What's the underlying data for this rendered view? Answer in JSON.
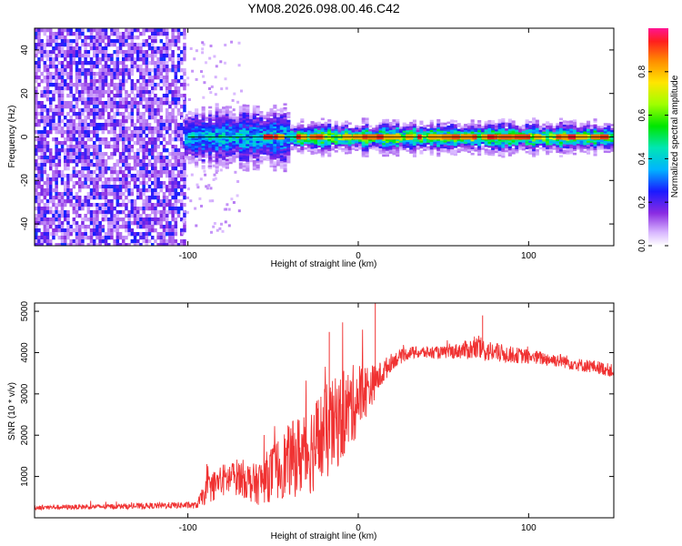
{
  "title": "YM08.2026.098.00.46.C42",
  "colors": {
    "line": "#f03232",
    "frame": "#000000",
    "background": "#ffffff"
  },
  "chart_data": [
    {
      "type": "heatmap",
      "xlabel": "Height of straight line (km)",
      "ylabel": "Frequency (Hz)",
      "xlim": [
        -190,
        150
      ],
      "ylim": [
        -50,
        50
      ],
      "xticks": [
        -100,
        0,
        100
      ],
      "yticks": [
        -40,
        -20,
        0,
        20,
        40
      ],
      "grid": false,
      "colorbar": {
        "label": "Normalized spectral amplitude",
        "range": [
          0,
          1
        ],
        "ticks": [
          0.0,
          0.2,
          0.4,
          0.6,
          0.8
        ],
        "tick_labels": [
          "0.0",
          "0.2",
          "0.4",
          "0.6",
          "0.8"
        ],
        "colormap": "rainbow"
      },
      "regions": [
        {
          "x_range": [
            -190,
            -102
          ],
          "freq_range": [
            -50,
            50
          ],
          "amplitude": 0.18,
          "pattern": "speckled"
        },
        {
          "x_range": [
            -102,
            -40
          ],
          "freq_range": [
            -7,
            7
          ],
          "amplitude": 0.45,
          "pattern": "band"
        },
        {
          "x_range": [
            -40,
            150
          ],
          "freq_range": [
            -4,
            4
          ],
          "amplitude": 0.7,
          "pattern": "band"
        }
      ],
      "peak_line": {
        "freq": 0,
        "amplitude": 0.95
      }
    },
    {
      "type": "line",
      "xlabel": "Height of straight line (km)",
      "ylabel": "SNR (10 * v/v)",
      "xlim": [
        -190,
        150
      ],
      "ylim": [
        0,
        5200
      ],
      "xticks": [
        -100,
        0,
        100
      ],
      "yticks": [
        1000,
        2000,
        3000,
        4000,
        5000
      ],
      "grid": false,
      "series": [
        {
          "x": [
            -190,
            -170,
            -150,
            -130,
            -110,
            -95,
            -88,
            -80,
            -70,
            -60,
            -50,
            -40,
            -30,
            -20,
            -10,
            0,
            10,
            20,
            30,
            40,
            50,
            60,
            70,
            80,
            90,
            100,
            110,
            120,
            130,
            140,
            150
          ],
          "y": [
            250,
            260,
            270,
            280,
            300,
            300,
            700,
            900,
            1000,
            800,
            1100,
            1400,
            1600,
            2000,
            2400,
            2900,
            3300,
            3800,
            4000,
            4000,
            4000,
            4050,
            4100,
            4000,
            3950,
            3900,
            3850,
            3800,
            3700,
            3650,
            3550
          ],
          "noise": [
            60,
            60,
            60,
            70,
            80,
            80,
            350,
            400,
            450,
            500,
            700,
            900,
            1100,
            1200,
            1100,
            900,
            400,
            200,
            150,
            150,
            150,
            200,
            300,
            250,
            200,
            180,
            170,
            170,
            160,
            160,
            160
          ]
        }
      ],
      "spikes": [
        {
          "x": 10,
          "y": 5200
        },
        {
          "x": -17,
          "y": 4500
        },
        {
          "x": 73,
          "y": 4900
        }
      ]
    }
  ]
}
